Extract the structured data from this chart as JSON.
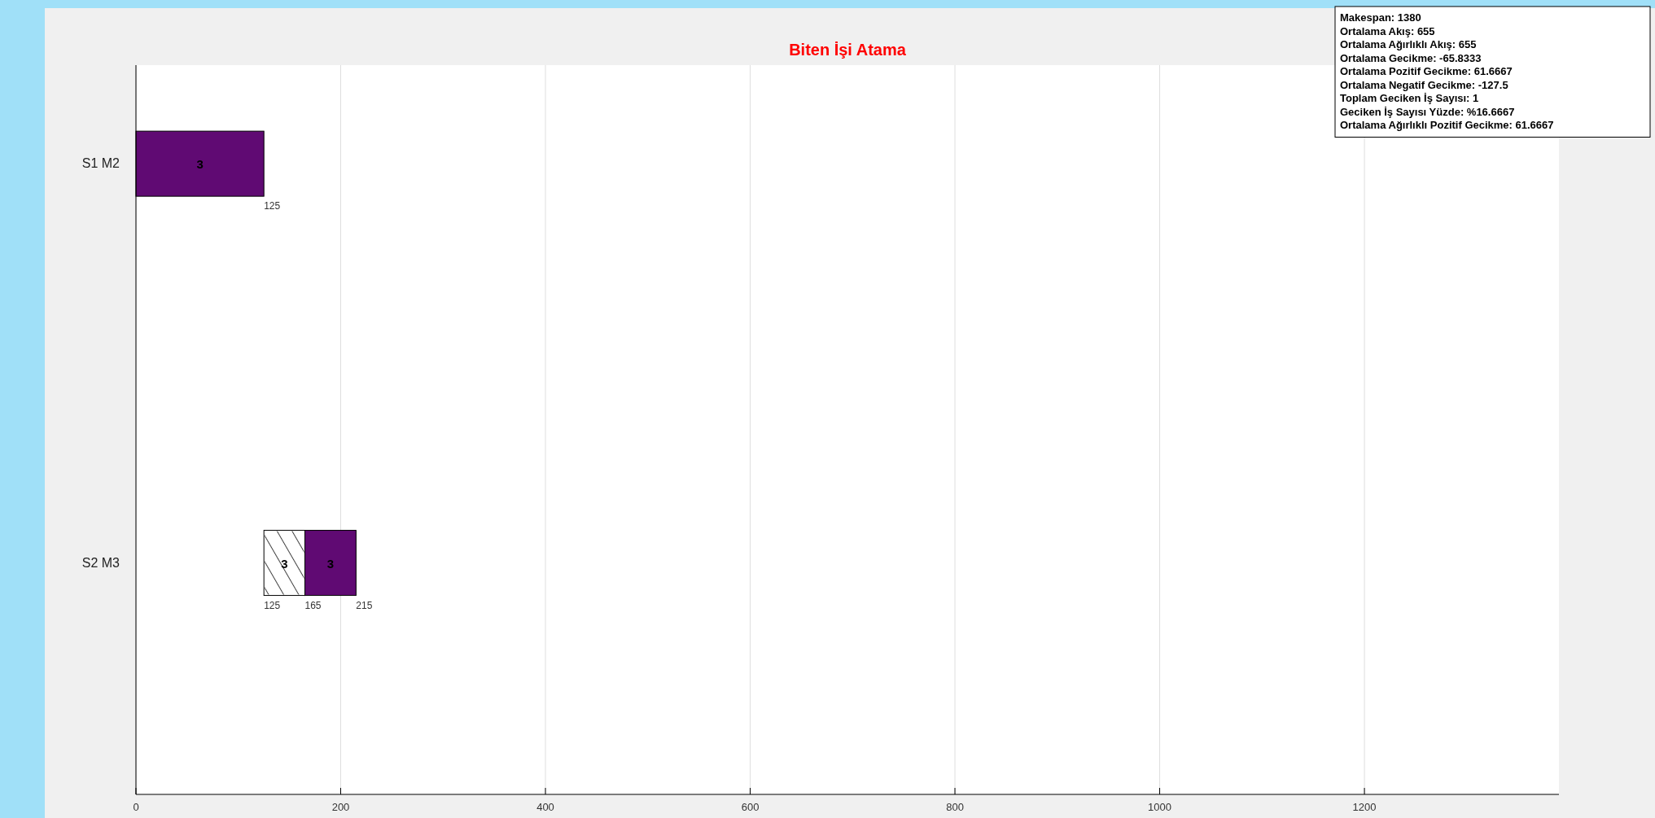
{
  "chart_data": {
    "type": "bar",
    "orientation": "horizontal",
    "title": "Biten İşi Atama",
    "categories": [
      "S1 M2",
      "S2 M3"
    ],
    "series": [
      {
        "name": "3",
        "color": "#ffffff",
        "values": [
          null,
          40
        ],
        "base": [
          null,
          125
        ]
      },
      {
        "name": "3",
        "color": "#600a73",
        "values": [
          125,
          50
        ],
        "base": [
          0,
          165
        ]
      }
    ],
    "xlim": [
      0,
      1390
    ],
    "xticks": [
      0,
      200,
      400,
      600,
      800,
      1000,
      1200
    ],
    "grid": "x",
    "annotations": [
      "125",
      "125",
      "165",
      "215",
      "Makespan: 1380",
      "Ortalama Akış: 655",
      "Ortalama Ağırlıklı Akış: 655",
      "Ortalama Gecikme: -65.8333",
      "Ortalama Pozitif Gecikme: 61.6667",
      "Ortalama Negatif Gecikme: -127.5",
      "Toplam Geciken İş Sayısı: 1",
      "Geciken İş Sayısı Yüzde: %16.6667",
      "Ortalama Ağırlıklı Pozitif Gecikme: 61.6667"
    ]
  }
}
